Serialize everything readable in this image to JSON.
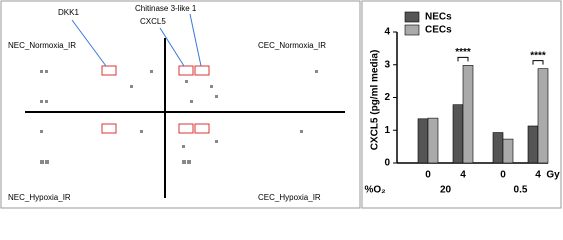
{
  "array": {
    "labels": {
      "dkk1": "DKK1",
      "chitinase": "Chitinase 3-like 1",
      "cxcl5": "CXCL5",
      "nec_normoxia": "NEC_Normoxia_IR",
      "cec_normoxia": "CEC_Normoxia_IR",
      "nec_hypoxia": "NEC_Hypoxia_IR",
      "cec_hypoxia": "CEC_Hypoxia_IR"
    }
  },
  "chart_data": {
    "type": "bar",
    "y_label": "CXCL5 (pg/ml media)",
    "categories": [
      "0",
      "4",
      "0",
      "4"
    ],
    "x_unit": "Gy",
    "groups": [
      "20",
      "0.5"
    ],
    "group_label": "%O₂",
    "series": [
      {
        "name": "NECs",
        "color": "#555555",
        "values": [
          1.35,
          1.78,
          0.93,
          1.13
        ]
      },
      {
        "name": "CECs",
        "color": "#aaaaaa",
        "values": [
          1.37,
          2.98,
          0.73,
          2.88
        ]
      }
    ],
    "annotations": [
      "****",
      "****"
    ],
    "ylim": [
      0,
      4
    ],
    "yticks": [
      0,
      1,
      2,
      3,
      4
    ],
    "legend": "upper left"
  }
}
